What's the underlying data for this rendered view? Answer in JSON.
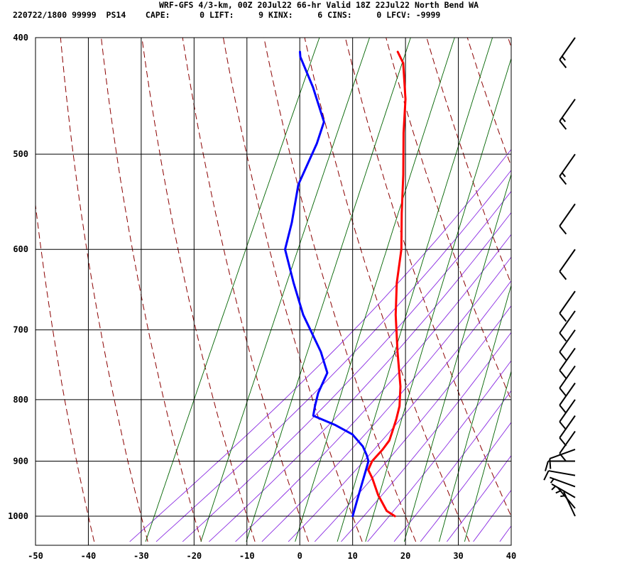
{
  "header": {
    "title": "WRF-GFS 4/3-km, 00Z 20Jul22 66-hr Valid 18Z 22Jul22 North Bend WA",
    "stats": "220722/1800 99999  PS14    CAPE:      0 LIFT:     9 KINX:     6 CINS:     0 LFCV: -9999"
  },
  "colors": {
    "temperature": "#ff0000",
    "dewpoint": "#0000ff",
    "dry_adiabat": "#8b0000",
    "moist_adiabat": "#8a2be2",
    "mixing_ratio": "#006400",
    "grid": "#000000"
  },
  "chart_data": {
    "type": "line",
    "subtype": "skew-T log-p sounding",
    "x_axis": {
      "ticks": [
        -50,
        -40,
        -30,
        -20,
        -10,
        0,
        10,
        20,
        30,
        40
      ],
      "range": [
        -50,
        40
      ],
      "unit": "°C"
    },
    "y_axis": {
      "ticks": [
        400,
        500,
        600,
        700,
        800,
        900,
        1000
      ],
      "range": [
        400,
        1050
      ],
      "scale": "log",
      "unit": "hPa"
    },
    "grid": true,
    "series": [
      {
        "key": "temperature",
        "points": [
          [
            1000,
            18.0
          ],
          [
            990,
            16.0
          ],
          [
            960,
            13.0
          ],
          [
            930,
            10.5
          ],
          [
            915,
            9.0
          ],
          [
            900,
            9.0
          ],
          [
            880,
            10.0
          ],
          [
            865,
            10.5
          ],
          [
            850,
            10.3
          ],
          [
            830,
            10.0
          ],
          [
            810,
            9.5
          ],
          [
            780,
            8.0
          ],
          [
            730,
            4.5
          ],
          [
            680,
            1.0
          ],
          [
            640,
            -1.5
          ],
          [
            600,
            -3.5
          ],
          [
            560,
            -6.5
          ],
          [
            520,
            -9.5
          ],
          [
            480,
            -13.0
          ],
          [
            450,
            -15.5
          ],
          [
            420,
            -19.0
          ],
          [
            411,
            -21.0
          ]
        ]
      },
      {
        "key": "dewpoint",
        "points": [
          [
            1000,
            10.0
          ],
          [
            970,
            9.5
          ],
          [
            940,
            9.0
          ],
          [
            910,
            8.5
          ],
          [
            900,
            8.3
          ],
          [
            890,
            7.5
          ],
          [
            875,
            6.0
          ],
          [
            855,
            3.0
          ],
          [
            840,
            -1.0
          ],
          [
            825,
            -6.0
          ],
          [
            810,
            -6.5
          ],
          [
            790,
            -7.0
          ],
          [
            760,
            -7.0
          ],
          [
            730,
            -10.0
          ],
          [
            680,
            -16.5
          ],
          [
            640,
            -21.0
          ],
          [
            600,
            -25.5
          ],
          [
            570,
            -26.5
          ],
          [
            530,
            -28.5
          ],
          [
            490,
            -28.5
          ],
          [
            470,
            -29.0
          ],
          [
            440,
            -34.0
          ],
          [
            415,
            -39.0
          ],
          [
            411,
            -39.5
          ]
        ]
      }
    ],
    "wind_barbs": [
      {
        "p": 1000,
        "dir": 335,
        "spd": 5
      },
      {
        "p": 985,
        "dir": 320,
        "spd": 5
      },
      {
        "p": 965,
        "dir": 300,
        "spd": 5
      },
      {
        "p": 945,
        "dir": 290,
        "spd": 5
      },
      {
        "p": 925,
        "dir": 280,
        "spd": 10
      },
      {
        "p": 900,
        "dir": 270,
        "spd": 10
      },
      {
        "p": 880,
        "dir": 250,
        "spd": 10
      },
      {
        "p": 850,
        "dir": 215,
        "spd": 10
      },
      {
        "p": 825,
        "dir": 215,
        "spd": 10
      },
      {
        "p": 800,
        "dir": 215,
        "spd": 10
      },
      {
        "p": 775,
        "dir": 215,
        "spd": 10
      },
      {
        "p": 750,
        "dir": 215,
        "spd": 10
      },
      {
        "p": 725,
        "dir": 215,
        "spd": 10
      },
      {
        "p": 700,
        "dir": 215,
        "spd": 10
      },
      {
        "p": 675,
        "dir": 215,
        "spd": 10
      },
      {
        "p": 650,
        "dir": 215,
        "spd": 10
      },
      {
        "p": 600,
        "dir": 215,
        "spd": 10
      },
      {
        "p": 550,
        "dir": 215,
        "spd": 10
      },
      {
        "p": 500,
        "dir": 215,
        "spd": 15
      },
      {
        "p": 450,
        "dir": 215,
        "spd": 15
      },
      {
        "p": 400,
        "dir": 215,
        "spd": 15
      }
    ]
  }
}
